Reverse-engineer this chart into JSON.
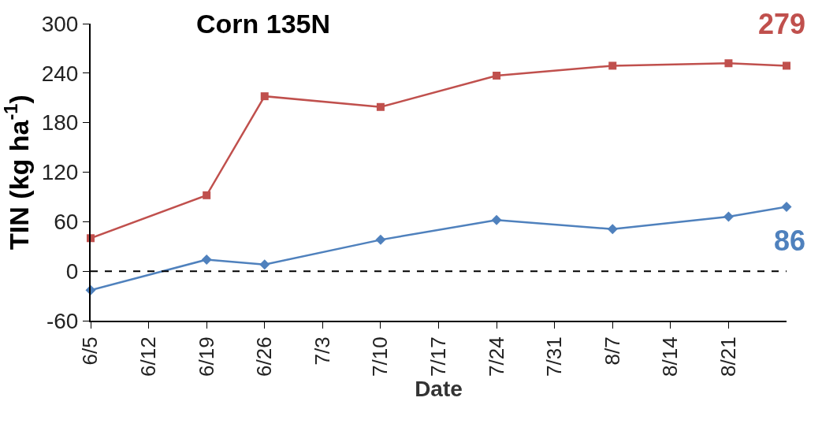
{
  "chart_data": {
    "type": "line",
    "title": "Corn 135N",
    "xlabel": "Date",
    "ylabel": "TIN (kg ha$^{-1}$)",
    "series": [
      {
        "color": "#c0504d",
        "marker": "square",
        "x": [
          "--06-05",
          "--06-19",
          "--06-26",
          "--07-10",
          "--07-24",
          "--08-07",
          "--08-21",
          "--08-28"
        ],
        "values": [
          40,
          92,
          212,
          199,
          237,
          249,
          252,
          249
        ]
      },
      {
        "color": "#4f81bd",
        "marker": "diamond",
        "x": [
          "--06-05",
          "--06-19",
          "--06-26",
          "--07-10",
          "--07-24",
          "--08-07",
          "--08-21",
          "--08-28"
        ],
        "values": [
          -23,
          14,
          8,
          38,
          62,
          51,
          66,
          78
        ]
      }
    ],
    "annotations": [
      "279",
      "86"
    ],
    "ylim": [
      -60,
      300
    ],
    "yticks": [
      -60,
      0,
      60,
      120,
      180,
      240,
      300
    ],
    "xlim": [
      "--06-05",
      "--08-28"
    ],
    "xticks": [
      {
        "value": "--06-05",
        "label": "6/5"
      },
      {
        "value": "--06-12",
        "label": "6/12"
      },
      {
        "value": "--06-19",
        "label": "6/19"
      },
      {
        "value": "--06-26",
        "label": "6/26"
      },
      {
        "value": "--07-03",
        "label": "7/3"
      },
      {
        "value": "--07-10",
        "label": "7/10"
      },
      {
        "value": "--07-17",
        "label": "7/17"
      },
      {
        "value": "--07-24",
        "label": "7/24"
      },
      {
        "value": "--07-31",
        "label": "7/31"
      },
      {
        "value": "--08-07",
        "label": "8/7"
      },
      {
        "value": "--08-14",
        "label": "8/14"
      },
      {
        "value": "--08-21",
        "label": "8/21"
      }
    ],
    "ref_lines": [
      {
        "axis": "y",
        "value": 0,
        "color": "#000000",
        "line_style": "dashed"
      }
    ],
    "grid": false,
    "line_style": "solid"
  }
}
